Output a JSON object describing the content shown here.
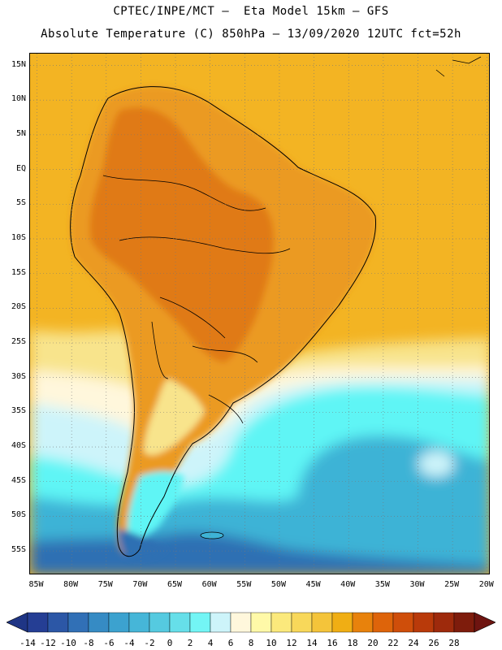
{
  "title": {
    "line1": "CPTEC/INPE/MCT —  Eta Model 15km — GFS",
    "line2": "Absolute Temperature (C) 850hPa — 13/09/2020 12UTC fct=52h"
  },
  "map": {
    "lat_labels": [
      "15N",
      "10N",
      "5N",
      "EQ",
      "5S",
      "10S",
      "15S",
      "20S",
      "25S",
      "30S",
      "35S",
      "40S",
      "45S",
      "50S",
      "55S"
    ],
    "lat_values": [
      15,
      10,
      5,
      0,
      -5,
      -10,
      -15,
      -20,
      -25,
      -30,
      -35,
      -40,
      -45,
      -50,
      -55
    ],
    "lon_labels": [
      "85W",
      "80W",
      "75W",
      "70W",
      "65W",
      "60W",
      "55W",
      "50W",
      "45W",
      "40W",
      "35W",
      "30W",
      "25W",
      "20W"
    ],
    "lon_values": [
      -85,
      -80,
      -75,
      -70,
      -65,
      -60,
      -55,
      -50,
      -45,
      -40,
      -35,
      -30,
      -25,
      -20
    ],
    "extent": {
      "lon_min": -86,
      "lon_max": -19.5,
      "lat_min": -58.5,
      "lat_max": 16.7
    },
    "colors": {
      "land_hot": "#e07a14",
      "land_warm": "#eb9a22",
      "ocean_tropical": "#f3b423",
      "warm_yellow": "#f8e48c",
      "pale": "#fff7dc",
      "cold_light": "#cdf4fa",
      "cyan": "#5ff5f5",
      "mid_blue": "#3eb3d6",
      "deep_blue": "#2f6fb3",
      "darkest": "#8a2d0c"
    }
  },
  "colorbar": {
    "labels": [
      "-14",
      "-12",
      "-10",
      "-8",
      "-6",
      "-4",
      "-2",
      "0",
      "2",
      "4",
      "6",
      "8",
      "10",
      "12",
      "14",
      "16",
      "18",
      "20",
      "22",
      "24",
      "26",
      "28"
    ],
    "colors": [
      "#253e94",
      "#2c57a6",
      "#3170b6",
      "#368bc4",
      "#3ca2cf",
      "#46b6d8",
      "#55cae0",
      "#66dfe9",
      "#73f5f5",
      "#cdf4fa",
      "#fff7dc",
      "#fff9a8",
      "#fbe97c",
      "#f8d85a",
      "#f4c43a",
      "#f0ae14",
      "#e8820c",
      "#de640a",
      "#cf4e0a",
      "#b93a0a",
      "#9e2a0c",
      "#7e1c0c"
    ],
    "end_left_color": "#1f3585",
    "end_right_color": "#6e1410"
  }
}
